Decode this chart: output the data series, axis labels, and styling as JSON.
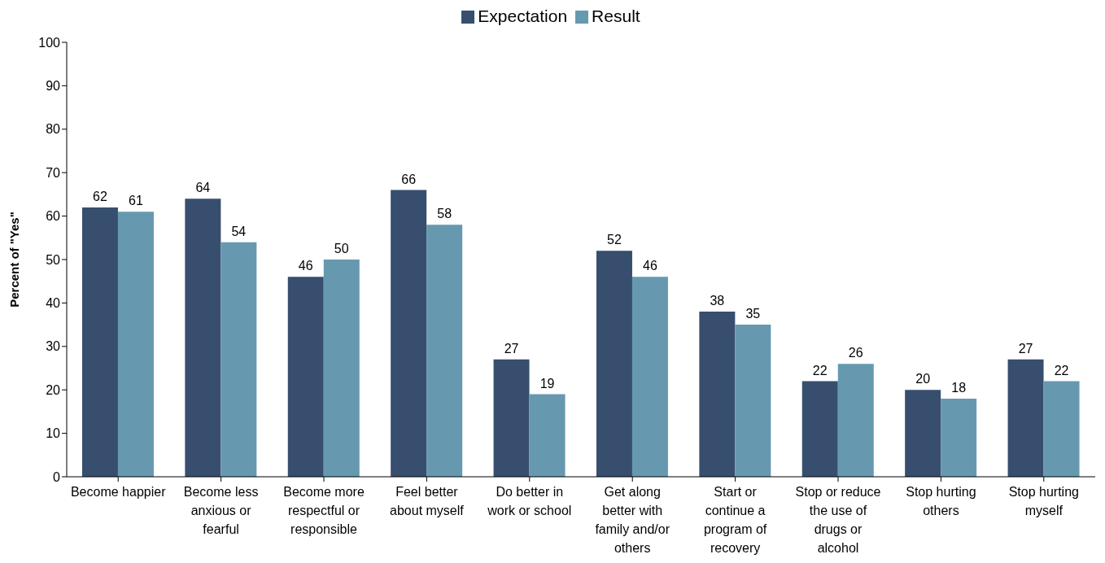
{
  "chart_data": {
    "type": "bar",
    "ylabel": "Percent of \"Yes\"",
    "categories": [
      "Become happier",
      "Become less anxious or fearful",
      "Become more respectful or responsible",
      "Feel better about myself",
      "Do better in work or school",
      "Get along better with family and/or others",
      "Start or continue a program of recovery",
      "Stop or reduce the use of drugs or alcohol",
      "Stop hurting others",
      "Stop hurting myself"
    ],
    "series": [
      {
        "name": "Expectation",
        "color": "#374e6e",
        "values": [
          62,
          64,
          46,
          66,
          27,
          52,
          38,
          22,
          20,
          27
        ]
      },
      {
        "name": "Result",
        "color": "#6699b0",
        "values": [
          61,
          54,
          50,
          58,
          19,
          46,
          35,
          26,
          18,
          22
        ]
      }
    ],
    "ylim": [
      0,
      100
    ],
    "yticks": [
      0,
      10,
      20,
      30,
      40,
      50,
      60,
      70,
      80,
      90,
      100
    ],
    "data_labels": true,
    "legend": "top",
    "grid": false
  }
}
